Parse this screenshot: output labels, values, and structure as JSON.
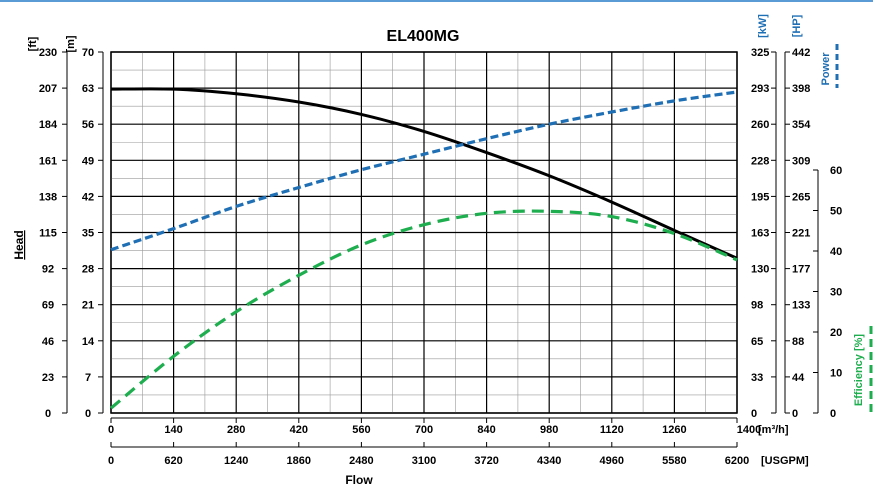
{
  "chart_data": {
    "type": "line",
    "title": "EL400MG",
    "xlabel": "Flow",
    "x_unit_primary": "[m³/h]",
    "x_unit_secondary": "[USGPM]",
    "x_ticks_m3h": [
      "0",
      "140",
      "280",
      "420",
      "560",
      "700",
      "840",
      "980",
      "1120",
      "1260",
      "1400"
    ],
    "x_ticks_usgpm": [
      "0",
      "620",
      "1240",
      "1860",
      "2480",
      "3100",
      "3720",
      "4340",
      "4960",
      "5580",
      "6200"
    ],
    "xlim": [
      0,
      1400
    ],
    "head": {
      "label": "Head",
      "unit_ft": "[ft]",
      "unit_m": "[m]",
      "ticks_ft": [
        "0",
        "23",
        "46",
        "69",
        "92",
        "115",
        "138",
        "161",
        "184",
        "207",
        "230"
      ],
      "ticks_m": [
        "0",
        "7",
        "14",
        "21",
        "28",
        "35",
        "42",
        "49",
        "56",
        "63",
        "70"
      ],
      "ylim_m": [
        0,
        70
      ]
    },
    "power": {
      "label": "Power",
      "unit_kw": "[kW]",
      "unit_hp": "[HP]",
      "ticks_kw": [
        "0",
        "33",
        "65",
        "98",
        "130",
        "163",
        "195",
        "228",
        "260",
        "293",
        "325"
      ],
      "ticks_hp": [
        "0",
        "44",
        "88",
        "133",
        "177",
        "221",
        "265",
        "309",
        "354",
        "398",
        "442"
      ],
      "ylim_kw": [
        0,
        325
      ]
    },
    "efficiency": {
      "label": "Efficiency [%]",
      "ticks": [
        "0",
        "10",
        "20",
        "30",
        "40",
        "50",
        "60"
      ],
      "ylim": [
        0,
        60
      ]
    },
    "series": [
      {
        "name": "Head",
        "axis": "head_m",
        "color": "#000000",
        "style": "solid",
        "x": [
          0,
          140,
          280,
          420,
          560,
          700,
          840,
          980,
          1120,
          1260,
          1400
        ],
        "y": [
          62.8,
          62.8,
          61.9,
          60.3,
          57.9,
          54.6,
          50.5,
          46.0,
          40.9,
          35.4,
          30.0
        ]
      },
      {
        "name": "Power",
        "axis": "power_kw",
        "color": "#1f6fb5",
        "style": "dashed",
        "x": [
          0,
          140,
          280,
          420,
          560,
          700,
          840,
          980,
          1120,
          1260,
          1400
        ],
        "y": [
          147,
          166,
          186,
          203,
          219,
          233,
          247,
          260,
          271,
          281,
          289
        ]
      },
      {
        "name": "Efficiency",
        "axis": "efficiency",
        "color": "#1fae4f",
        "style": "dashed",
        "x": [
          0,
          140,
          280,
          420,
          560,
          700,
          840,
          980,
          1120,
          1260,
          1400
        ],
        "y": [
          1.2,
          14.0,
          25.0,
          34.0,
          41.5,
          46.5,
          49.3,
          49.8,
          48.5,
          44.3,
          37.8
        ]
      }
    ],
    "grid": true
  }
}
